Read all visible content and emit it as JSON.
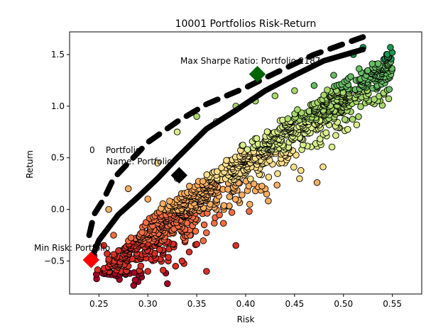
{
  "chart_data": {
    "type": "scatter",
    "title": "10001 Portfolios Risk-Return",
    "xlabel": "Risk",
    "ylabel": "Return",
    "xlim": [
      0.22,
      0.58
    ],
    "ylim": [
      -0.82,
      1.72
    ],
    "xticks": [
      0.25,
      0.3,
      0.35,
      0.4,
      0.45,
      0.5,
      0.55
    ],
    "xtick_labels": [
      "0.25",
      "0.30",
      "0.35",
      "0.40",
      "0.45",
      "0.50",
      "0.55"
    ],
    "yticks": [
      -0.5,
      0.0,
      0.5,
      1.0,
      1.5
    ],
    "ytick_labels": [
      "−0.5",
      "0.0",
      "0.5",
      "1.0",
      "1.5"
    ],
    "grid": false,
    "colormap": [
      "#a50026",
      "#d73027",
      "#f46d43",
      "#fdae61",
      "#fee08b",
      "#d9ef8b",
      "#a6d96a",
      "#66bd63",
      "#1a9850"
    ],
    "scatter_outline": "#000000",
    "portfolio_count": 10001,
    "series": [
      {
        "name": "Portfolios",
        "representative_points": [
          {
            "x": 0.245,
            "y": -0.45
          },
          {
            "x": 0.255,
            "y": -0.35
          },
          {
            "x": 0.26,
            "y": -0.5
          },
          {
            "x": 0.265,
            "y": -0.25
          },
          {
            "x": 0.27,
            "y": -0.4
          },
          {
            "x": 0.28,
            "y": -0.55
          },
          {
            "x": 0.29,
            "y": -0.7
          },
          {
            "x": 0.3,
            "y": -0.6
          },
          {
            "x": 0.32,
            "y": -0.72
          },
          {
            "x": 0.335,
            "y": -0.5
          },
          {
            "x": 0.36,
            "y": -0.6
          },
          {
            "x": 0.39,
            "y": -0.35
          },
          {
            "x": 0.26,
            "y": 0.0
          },
          {
            "x": 0.28,
            "y": 0.2
          },
          {
            "x": 0.3,
            "y": 0.1
          },
          {
            "x": 0.31,
            "y": 0.45
          },
          {
            "x": 0.33,
            "y": 0.3
          },
          {
            "x": 0.35,
            "y": 0.1
          },
          {
            "x": 0.37,
            "y": 0.0
          },
          {
            "x": 0.4,
            "y": 0.35
          },
          {
            "x": 0.42,
            "y": 0.2
          },
          {
            "x": 0.44,
            "y": 0.45
          },
          {
            "x": 0.473,
            "y": 0.26
          },
          {
            "x": 0.33,
            "y": 0.75
          },
          {
            "x": 0.35,
            "y": 0.9
          },
          {
            "x": 0.37,
            "y": 0.85
          },
          {
            "x": 0.39,
            "y": 1.0
          },
          {
            "x": 0.41,
            "y": 1.05
          },
          {
            "x": 0.43,
            "y": 1.1
          },
          {
            "x": 0.45,
            "y": 1.15
          },
          {
            "x": 0.47,
            "y": 1.2
          },
          {
            "x": 0.49,
            "y": 1.3
          },
          {
            "x": 0.51,
            "y": 1.5
          },
          {
            "x": 0.52,
            "y": 1.57
          },
          {
            "x": 0.548,
            "y": 1.57
          },
          {
            "x": 0.474,
            "y": 0.85
          }
        ]
      }
    ],
    "markers": [
      {
        "label": "Max Sharpe Ratio: Portfolio 2187",
        "x": 0.412,
        "y": 1.31,
        "color": "#006400",
        "shape": "diamond"
      },
      {
        "label": "Min Risk: Portfolio",
        "x": 0.242,
        "y": -0.49,
        "color": "#ff0000",
        "shape": "diamond"
      },
      {
        "label": "Portfolio",
        "x": 0.332,
        "y": 0.33,
        "color": "#000000",
        "shape": "diamond"
      }
    ],
    "annotations": [
      {
        "text": "Max Sharpe Ratio: Portfolio 2187"
      },
      {
        "text": "Min Risk: Portfolio"
      },
      {
        "text": "0    Portfolio"
      },
      {
        "text": "Name: Portfolio"
      }
    ],
    "frontier_lines": [
      {
        "style": "solid",
        "points": [
          [
            0.242,
            -0.49
          ],
          [
            0.25,
            -0.3
          ],
          [
            0.27,
            -0.05
          ],
          [
            0.29,
            0.12
          ],
          [
            0.31,
            0.3
          ],
          [
            0.33,
            0.5
          ],
          [
            0.36,
            0.78
          ],
          [
            0.39,
            0.96
          ],
          [
            0.42,
            1.15
          ],
          [
            0.45,
            1.3
          ],
          [
            0.48,
            1.44
          ],
          [
            0.52,
            1.55
          ]
        ]
      },
      {
        "style": "dashed",
        "points": [
          [
            0.24,
            -0.25
          ],
          [
            0.245,
            -0.05
          ],
          [
            0.255,
            0.1
          ],
          [
            0.265,
            0.3
          ],
          [
            0.28,
            0.45
          ],
          [
            0.3,
            0.65
          ],
          [
            0.33,
            0.85
          ],
          [
            0.36,
            1.02
          ],
          [
            0.4,
            1.18
          ],
          [
            0.43,
            1.32
          ],
          [
            0.47,
            1.5
          ],
          [
            0.52,
            1.67
          ]
        ]
      }
    ]
  }
}
